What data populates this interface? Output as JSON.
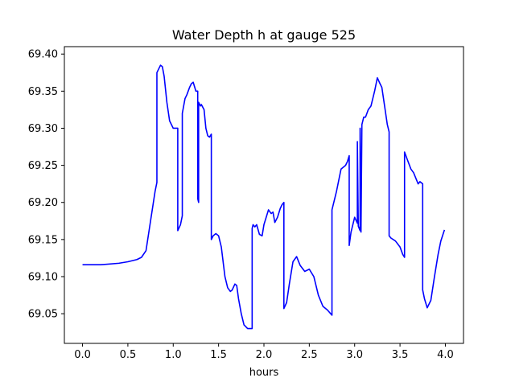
{
  "chart_data": {
    "type": "line",
    "title": "Water Depth h at gauge 525",
    "xlabel": "hours",
    "ylabel": "",
    "xlim": [
      -0.2,
      4.2
    ],
    "ylim": [
      69.01,
      69.41
    ],
    "xticks": [
      0.0,
      0.5,
      1.0,
      1.5,
      2.0,
      2.5,
      3.0,
      3.5,
      4.0
    ],
    "xtick_labels": [
      "0.0",
      "0.5",
      "1.0",
      "1.5",
      "2.0",
      "2.5",
      "3.0",
      "3.5",
      "4.0"
    ],
    "yticks": [
      69.05,
      69.1,
      69.15,
      69.2,
      69.25,
      69.3,
      69.35,
      69.4
    ],
    "ytick_labels": [
      "69.05",
      "69.10",
      "69.15",
      "69.20",
      "69.25",
      "69.30",
      "69.35",
      "69.40"
    ],
    "grid": false,
    "legend": "none",
    "series": [
      {
        "color": "#0000ff",
        "x": [
          0.0,
          0.2,
          0.4,
          0.5,
          0.6,
          0.65,
          0.7,
          0.75,
          0.8,
          0.82,
          0.82,
          0.86,
          0.88,
          0.9,
          0.93,
          0.96,
          1.0,
          1.03,
          1.05,
          1.05,
          1.08,
          1.1,
          1.1,
          1.13,
          1.15,
          1.18,
          1.2,
          1.22,
          1.25,
          1.27,
          1.27,
          1.28,
          1.28,
          1.3,
          1.31,
          1.34,
          1.36,
          1.38,
          1.4,
          1.42,
          1.42,
          1.44,
          1.47,
          1.5,
          1.53,
          1.57,
          1.6,
          1.63,
          1.65,
          1.68,
          1.7,
          1.72,
          1.75,
          1.78,
          1.82,
          1.85,
          1.87,
          1.87,
          1.88,
          1.9,
          1.92,
          1.95,
          1.98,
          2.0,
          2.05,
          2.08,
          2.1,
          2.12,
          2.15,
          2.18,
          2.2,
          2.22,
          2.22,
          2.25,
          2.28,
          2.32,
          2.36,
          2.4,
          2.45,
          2.5,
          2.55,
          2.6,
          2.65,
          2.7,
          2.75,
          2.75,
          2.8,
          2.85,
          2.9,
          2.92,
          2.94,
          2.94,
          2.96,
          3.0,
          3.03,
          3.03,
          3.04,
          3.06,
          3.06,
          3.07,
          3.08,
          3.1,
          3.12,
          3.15,
          3.18,
          3.22,
          3.25,
          3.28,
          3.3,
          3.33,
          3.36,
          3.38,
          3.38,
          3.4,
          3.45,
          3.5,
          3.53,
          3.55,
          3.55,
          3.58,
          3.62,
          3.65,
          3.7,
          3.72,
          3.75,
          3.75,
          3.77,
          3.8,
          3.84,
          3.88,
          3.92,
          3.95,
          3.99
        ],
        "y": [
          69.116,
          69.116,
          69.118,
          69.12,
          69.123,
          69.126,
          69.135,
          69.175,
          69.215,
          69.227,
          69.375,
          69.385,
          69.383,
          69.37,
          69.335,
          69.31,
          69.3,
          69.3,
          69.3,
          69.162,
          69.17,
          69.182,
          69.32,
          69.34,
          69.345,
          69.355,
          69.36,
          69.362,
          69.35,
          69.35,
          69.205,
          69.2,
          69.335,
          69.33,
          69.332,
          69.325,
          69.3,
          69.29,
          69.288,
          69.292,
          69.15,
          69.155,
          69.158,
          69.155,
          69.14,
          69.1,
          69.085,
          69.08,
          69.082,
          69.09,
          69.088,
          69.07,
          69.05,
          69.035,
          69.03,
          69.03,
          69.03,
          69.165,
          69.17,
          69.167,
          69.17,
          69.157,
          69.155,
          69.17,
          69.19,
          69.185,
          69.187,
          69.173,
          69.18,
          69.192,
          69.197,
          69.2,
          69.057,
          69.065,
          69.09,
          69.12,
          69.127,
          69.115,
          69.107,
          69.11,
          69.1,
          69.075,
          69.06,
          69.055,
          69.048,
          69.19,
          69.215,
          69.245,
          69.25,
          69.255,
          69.263,
          69.142,
          69.16,
          69.18,
          69.172,
          69.282,
          69.168,
          69.162,
          69.3,
          69.16,
          69.305,
          69.315,
          69.315,
          69.325,
          69.33,
          69.35,
          69.368,
          69.36,
          69.355,
          69.33,
          69.305,
          69.295,
          69.155,
          69.152,
          69.148,
          69.14,
          69.13,
          69.126,
          69.268,
          69.258,
          69.245,
          69.24,
          69.225,
          69.228,
          69.225,
          69.082,
          69.07,
          69.058,
          69.068,
          69.1,
          69.13,
          69.148,
          69.163
        ]
      }
    ]
  }
}
